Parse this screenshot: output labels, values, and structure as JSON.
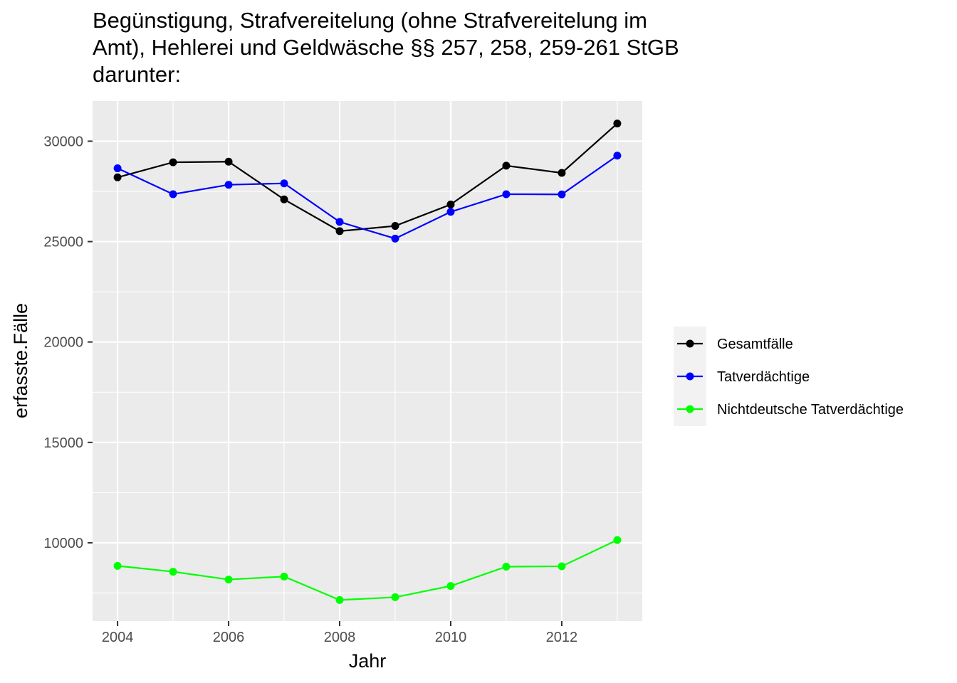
{
  "chart_data": {
    "type": "line",
    "title_lines": [
      "Begünstigung, Strafvereitelung (ohne Strafvereitelung im",
      "Amt), Hehlerei und Geldwäsche §§ 257, 258, 259-261 StGB",
      "darunter:"
    ],
    "xlabel": "Jahr",
    "ylabel": "erfasste.Fälle",
    "x": [
      2004,
      2005,
      2006,
      2007,
      2008,
      2009,
      2010,
      2011,
      2012,
      2013
    ],
    "xlim": [
      2003.55,
      2013.45
    ],
    "ylim": [
      6100,
      32000
    ],
    "x_ticks": [
      2004,
      2006,
      2008,
      2010,
      2012
    ],
    "x_tick_labels": [
      "2004",
      "2006",
      "2008",
      "2010",
      "2012"
    ],
    "y_ticks": [
      10000,
      15000,
      20000,
      25000,
      30000
    ],
    "y_tick_labels": [
      "10000",
      "15000",
      "20000",
      "25000",
      "30000"
    ],
    "grid": true,
    "legend_position": "right",
    "series": [
      {
        "name": "Gesamtfälle",
        "color": "#000000",
        "values": [
          28200,
          28950,
          28980,
          27100,
          25520,
          25780,
          26850,
          28780,
          28420,
          30880
        ]
      },
      {
        "name": "Tatverdächtige",
        "color": "#0000ff",
        "values": [
          28650,
          27360,
          27830,
          27900,
          25980,
          25150,
          26480,
          27360,
          27350,
          29280
        ]
      },
      {
        "name": "Nichtdeutsche Tatverdächtige",
        "color": "#00ff00",
        "values": [
          8850,
          8560,
          8170,
          8320,
          7150,
          7290,
          7850,
          8810,
          8830,
          10140
        ]
      }
    ]
  }
}
